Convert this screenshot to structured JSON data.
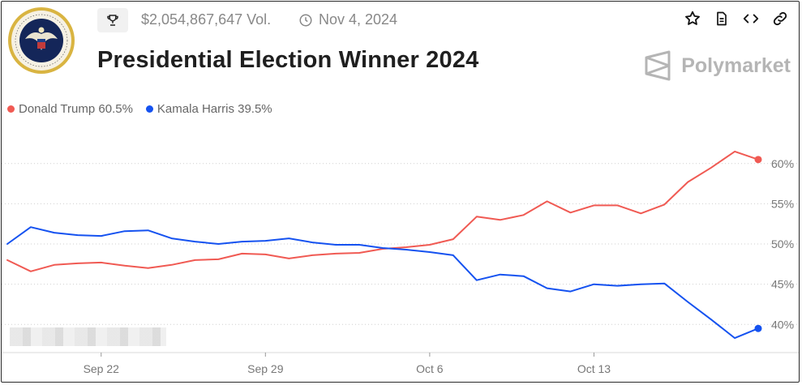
{
  "header": {
    "volume": "$2,054,867,647 Vol.",
    "date": "Nov 4, 2024",
    "title": "Presidential Election Winner 2024",
    "brand": "Polymarket",
    "icons": [
      "trophy-icon",
      "clock-icon",
      "star-icon",
      "document-icon",
      "code-icon",
      "link-icon"
    ]
  },
  "legend": [
    {
      "label": "Donald Trump 60.5%",
      "color": "#f05a53"
    },
    {
      "label": "Kamala Harris 39.5%",
      "color": "#1552f0"
    }
  ],
  "chart_data": {
    "type": "line",
    "grid": true,
    "legend_position": "top-left",
    "ylim": [
      36.5,
      62.5
    ],
    "yticks": [
      60,
      55,
      50,
      45,
      40
    ],
    "ytick_labels": [
      "60%",
      "55%",
      "50%",
      "45%",
      "40%"
    ],
    "xlim": [
      "2024-09-18",
      "2024-10-20"
    ],
    "xticks": [
      "2024-09-22",
      "2024-09-29",
      "2024-10-06",
      "2024-10-13"
    ],
    "xtick_labels": [
      "Sep 22",
      "Sep 29",
      "Oct 6",
      "Oct 13"
    ],
    "series": [
      {
        "name": "Donald Trump",
        "color": "#f05a53",
        "points": [
          [
            "2024-09-18",
            48.0
          ],
          [
            "2024-09-19",
            46.6
          ],
          [
            "2024-09-20",
            47.4
          ],
          [
            "2024-09-21",
            47.6
          ],
          [
            "2024-09-22",
            47.7
          ],
          [
            "2024-09-23",
            47.3
          ],
          [
            "2024-09-24",
            47.0
          ],
          [
            "2024-09-25",
            47.4
          ],
          [
            "2024-09-26",
            48.0
          ],
          [
            "2024-09-27",
            48.1
          ],
          [
            "2024-09-28",
            48.8
          ],
          [
            "2024-09-29",
            48.7
          ],
          [
            "2024-09-30",
            48.2
          ],
          [
            "2024-10-01",
            48.6
          ],
          [
            "2024-10-02",
            48.8
          ],
          [
            "2024-10-03",
            48.9
          ],
          [
            "2024-10-04",
            49.4
          ],
          [
            "2024-10-05",
            49.6
          ],
          [
            "2024-10-06",
            49.9
          ],
          [
            "2024-10-07",
            50.6
          ],
          [
            "2024-10-08",
            53.4
          ],
          [
            "2024-10-09",
            53.0
          ],
          [
            "2024-10-10",
            53.6
          ],
          [
            "2024-10-11",
            55.3
          ],
          [
            "2024-10-12",
            53.9
          ],
          [
            "2024-10-13",
            54.8
          ],
          [
            "2024-10-14",
            54.8
          ],
          [
            "2024-10-15",
            53.8
          ],
          [
            "2024-10-16",
            54.9
          ],
          [
            "2024-10-17",
            57.7
          ],
          [
            "2024-10-18",
            59.5
          ],
          [
            "2024-10-19",
            61.5
          ],
          [
            "2024-10-20",
            60.5
          ]
        ]
      },
      {
        "name": "Kamala Harris",
        "color": "#1552f0",
        "points": [
          [
            "2024-09-18",
            50.0
          ],
          [
            "2024-09-19",
            52.1
          ],
          [
            "2024-09-20",
            51.4
          ],
          [
            "2024-09-21",
            51.1
          ],
          [
            "2024-09-22",
            51.0
          ],
          [
            "2024-09-23",
            51.6
          ],
          [
            "2024-09-24",
            51.7
          ],
          [
            "2024-09-25",
            50.7
          ],
          [
            "2024-09-26",
            50.3
          ],
          [
            "2024-09-27",
            50.0
          ],
          [
            "2024-09-28",
            50.3
          ],
          [
            "2024-09-29",
            50.4
          ],
          [
            "2024-09-30",
            50.7
          ],
          [
            "2024-10-01",
            50.2
          ],
          [
            "2024-10-02",
            49.9
          ],
          [
            "2024-10-03",
            49.9
          ],
          [
            "2024-10-04",
            49.5
          ],
          [
            "2024-10-05",
            49.3
          ],
          [
            "2024-10-06",
            49.0
          ],
          [
            "2024-10-07",
            48.6
          ],
          [
            "2024-10-08",
            45.5
          ],
          [
            "2024-10-09",
            46.2
          ],
          [
            "2024-10-10",
            46.0
          ],
          [
            "2024-10-11",
            44.5
          ],
          [
            "2024-10-12",
            44.1
          ],
          [
            "2024-10-13",
            45.0
          ],
          [
            "2024-10-14",
            44.8
          ],
          [
            "2024-10-15",
            45.0
          ],
          [
            "2024-10-16",
            45.1
          ],
          [
            "2024-10-17",
            42.8
          ],
          [
            "2024-10-18",
            40.6
          ],
          [
            "2024-10-19",
            38.3
          ],
          [
            "2024-10-20",
            39.5
          ]
        ]
      }
    ]
  }
}
